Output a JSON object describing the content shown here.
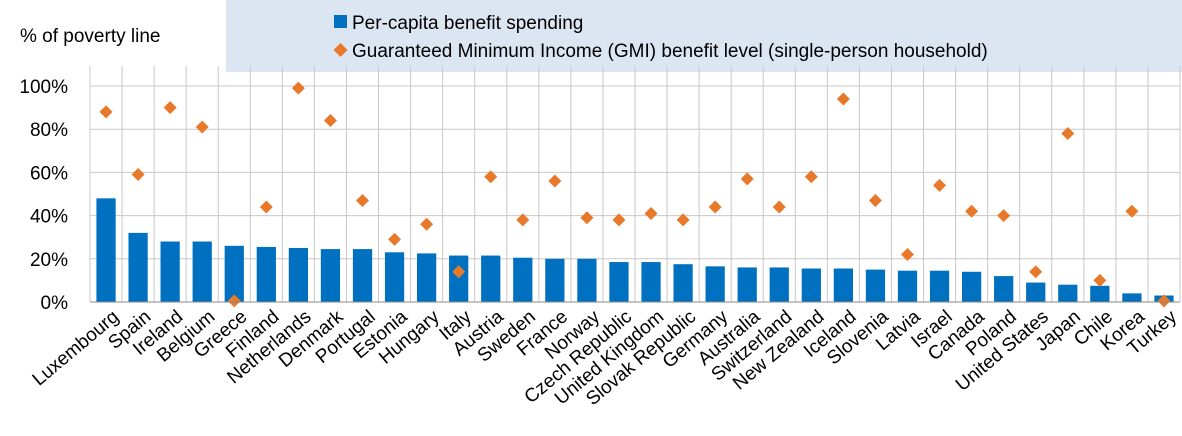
{
  "chart_data": {
    "type": "bar",
    "y_axis_label": "% of poverty line",
    "categories": [
      "Luxembourg",
      "Spain",
      "Ireland",
      "Belgium",
      "Greece",
      "Finland",
      "Netherlands",
      "Denmark",
      "Portugal",
      "Estonia",
      "Hungary",
      "Italy",
      "Austria",
      "Sweden",
      "France",
      "Norway",
      "Czech Republic",
      "United Kingdom",
      "Slovak Republic",
      "Germany",
      "Australia",
      "Switzerland",
      "New Zealand",
      "Iceland",
      "Slovenia",
      "Latvia",
      "Israel",
      "Canada",
      "Poland",
      "United States",
      "Japan",
      "Chile",
      "Korea",
      "Turkey"
    ],
    "series": [
      {
        "name": "Per-capita benefit spending",
        "type": "bar",
        "color": "#0070c0",
        "values": [
          48,
          32,
          28,
          28,
          26,
          25.5,
          25,
          24.5,
          24.5,
          23,
          22.5,
          21.5,
          21.5,
          20.5,
          20,
          20,
          18.5,
          18.5,
          17.5,
          16.5,
          16,
          16,
          15.5,
          15.5,
          15,
          14.5,
          14.5,
          14,
          12,
          9,
          8,
          7.5,
          4,
          3
        ]
      },
      {
        "name": "Guaranteed Minimum Income (GMI) benefit level (single-person household)",
        "type": "scatter",
        "color": "#e8792b",
        "values": [
          88,
          59,
          90,
          81,
          0.5,
          44,
          99,
          84,
          47,
          29,
          36,
          14,
          58,
          38,
          56,
          39,
          38,
          41,
          38,
          44,
          57,
          44,
          58,
          94,
          47,
          22,
          54,
          42,
          40,
          14,
          78,
          10,
          42,
          0.5
        ]
      }
    ],
    "ylim": [
      0,
      100
    ],
    "yticks": [
      {
        "value": 0,
        "label": "0%"
      },
      {
        "value": 20,
        "label": "20%"
      },
      {
        "value": 40,
        "label": "40%"
      },
      {
        "value": 60,
        "label": "60%"
      },
      {
        "value": 80,
        "label": "80%"
      },
      {
        "value": 100,
        "label": "100%"
      }
    ],
    "grid": true
  }
}
